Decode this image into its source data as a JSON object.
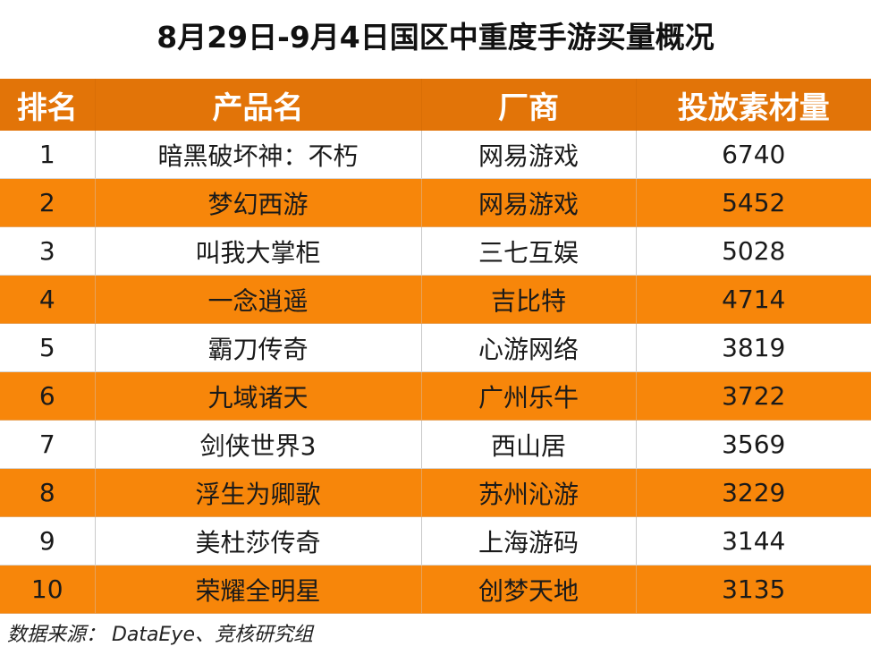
{
  "title": "8月29日-9月4日国区中重度手游买量概况",
  "headers": [
    "排名",
    "产品名",
    "厂商",
    "投放素材量"
  ],
  "rows": [
    {
      "rank": "1",
      "product": "暗黑破坏神：不朽",
      "vendor": "网易游戏",
      "count": "6740"
    },
    {
      "rank": "2",
      "product": "梦幻西游",
      "vendor": "网易游戏",
      "count": "5452"
    },
    {
      "rank": "3",
      "product": "叫我大掌柜",
      "vendor": "三七互娱",
      "count": "5028"
    },
    {
      "rank": "4",
      "product": "一念逍遥",
      "vendor": "吉比特",
      "count": "4714"
    },
    {
      "rank": "5",
      "product": "霸刀传奇",
      "vendor": "心游网络",
      "count": "3819"
    },
    {
      "rank": "6",
      "product": "九域诸天",
      "vendor": "广州乐牛",
      "count": "3722"
    },
    {
      "rank": "7",
      "product": "剑侠世界3",
      "vendor": "西山居",
      "count": "3569"
    },
    {
      "rank": "8",
      "product": "浮生为卿歌",
      "vendor": "苏州沁游",
      "count": "3229"
    },
    {
      "rank": "9",
      "product": "美杜莎传奇",
      "vendor": "上海游码",
      "count": "3144"
    },
    {
      "rank": "10",
      "product": "荣耀全明星",
      "vendor": "创梦天地",
      "count": "3135"
    }
  ],
  "footer": "数据来源： DataEye、竞核研究组",
  "colors": {
    "header": "#e27408",
    "alt_row": "#f7860a"
  }
}
